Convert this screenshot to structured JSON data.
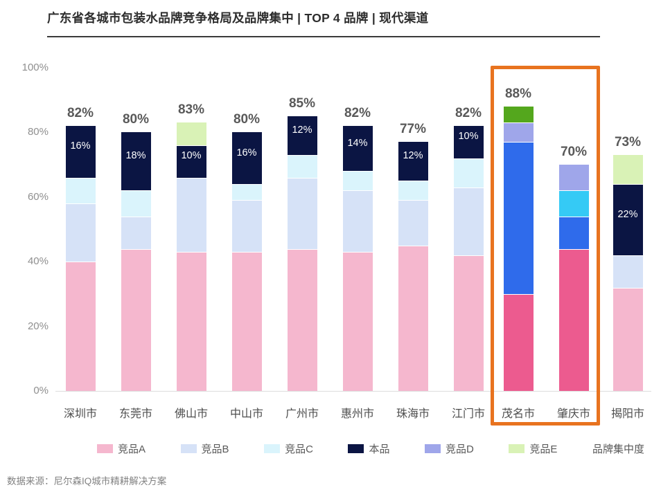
{
  "title": "广东省各城市包装水品牌竞争格局及品牌集中 | TOP 4 品牌 | 现代渠道",
  "source": "数据来源：尼尔森IQ城市精耕解决方案",
  "y_axis": {
    "tick_labels": [
      "0%",
      "20%",
      "40%",
      "60%",
      "80%",
      "100%"
    ],
    "tick_values": [
      0,
      20,
      40,
      60,
      80,
      100
    ]
  },
  "legend": {
    "items": [
      {
        "label": "竞品A",
        "key": "竞品A"
      },
      {
        "label": "竞品B",
        "key": "竞品B"
      },
      {
        "label": "竞品C",
        "key": "竞品C"
      },
      {
        "label": "本品",
        "key": "本品"
      },
      {
        "label": "竞品D",
        "key": "竞品D"
      },
      {
        "label": "竞品E",
        "key": "竞品E"
      }
    ],
    "concentration_label": "品牌集中度"
  },
  "colors": {
    "normal": {
      "竞品A": "#F5B7CE",
      "竞品B": "#D6E2F7",
      "竞品C": "#DAF4FC",
      "本品": "#0B1543",
      "竞品D": "#9FA6EA",
      "竞品E": "#D9F2B6"
    },
    "highlight": {
      "竞品A": "#EC5B8F",
      "竞品B": "#2F6BEB",
      "竞品C": "#35CAF5",
      "本品": "#0B1543",
      "竞品D": "#9FA6EA",
      "竞品E": "#54A71D"
    },
    "highlight_box": "#E8731F",
    "total_label": "#595959",
    "inner_label": "#FFFFFF"
  },
  "chart_data": {
    "type": "bar",
    "stacked": true,
    "title": "广东省各城市包装水品牌竞争格局及品牌集中 | TOP 4 品牌 | 现代渠道",
    "categories": [
      "深圳市",
      "东莞市",
      "佛山市",
      "中山市",
      "广州市",
      "惠州市",
      "珠海市",
      "江门市",
      "茂名市",
      "肇庆市",
      "揭阳市"
    ],
    "totals": [
      82,
      80,
      83,
      80,
      85,
      82,
      77,
      82,
      88,
      70,
      73
    ],
    "series": [
      {
        "name": "竞品A",
        "values": [
          40,
          44,
          43,
          43,
          44,
          43,
          45,
          42,
          30,
          44,
          32
        ]
      },
      {
        "name": "竞品B",
        "values": [
          18,
          10,
          23,
          16,
          22,
          19,
          14,
          21,
          47,
          10,
          10
        ]
      },
      {
        "name": "竞品C",
        "values": [
          8,
          8,
          0,
          5,
          7,
          6,
          6,
          9,
          0,
          8,
          0
        ]
      },
      {
        "name": "本品",
        "values": [
          16,
          18,
          10,
          16,
          12,
          14,
          12,
          10,
          0,
          0,
          22
        ]
      },
      {
        "name": "竞品D",
        "values": [
          0,
          0,
          0,
          0,
          0,
          0,
          0,
          0,
          6,
          8,
          0
        ]
      },
      {
        "name": "竞品E",
        "values": [
          0,
          0,
          7,
          0,
          0,
          0,
          0,
          0,
          5,
          0,
          9
        ]
      }
    ],
    "inner_labels_series": "本品",
    "inner_labels": [
      16,
      18,
      10,
      16,
      12,
      14,
      12,
      10,
      null,
      null,
      22
    ],
    "highlighted_categories": [
      "茂名市",
      "肇庆市"
    ],
    "ylim": [
      0,
      100
    ],
    "y_ticks": [
      0,
      20,
      40,
      60,
      80,
      100
    ],
    "grid": false,
    "legend_position": "bottom"
  }
}
